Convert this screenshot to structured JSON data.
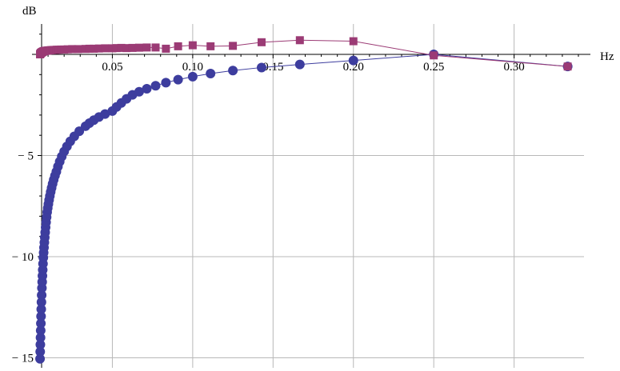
{
  "chart_data": {
    "type": "line",
    "xlabel": "Hz",
    "ylabel": "dB",
    "xlim": [
      0.0,
      0.345
    ],
    "ylim": [
      -15.2,
      1.2
    ],
    "x_ticks": [
      {
        "value": 0.05,
        "label": "0.05"
      },
      {
        "value": 0.1,
        "label": "0.10"
      },
      {
        "value": 0.15,
        "label": "0.15"
      },
      {
        "value": 0.2,
        "label": "0.20"
      },
      {
        "value": 0.25,
        "label": "0.25"
      },
      {
        "value": 0.3,
        "label": "0.30"
      }
    ],
    "y_ticks": [
      {
        "value": -5,
        "label": "− 5"
      },
      {
        "value": -10,
        "label": "− 10"
      },
      {
        "value": -15,
        "label": "− 15"
      }
    ],
    "grid": true,
    "series": [
      {
        "color": "#3d3d9e",
        "marker": "circle",
        "x": [
          0.005,
          0.0051,
          0.0052,
          0.0053,
          0.00541,
          0.00552,
          0.00563,
          0.00575,
          0.00588,
          0.00602,
          0.00617,
          0.00633,
          0.00649,
          0.00667,
          0.00685,
          0.00704,
          0.00725,
          0.00746,
          0.00769,
          0.00794,
          0.0082,
          0.00847,
          0.00877,
          0.00909,
          0.00943,
          0.0098,
          0.0102,
          0.01064,
          0.01111,
          0.01163,
          0.0122,
          0.01282,
          0.01351,
          0.01429,
          0.01515,
          0.01613,
          0.01724,
          0.01852,
          0.02,
          0.02174,
          0.02381,
          0.02632,
          0.02941,
          0.03333,
          0.03571,
          0.03846,
          0.04167,
          0.04545,
          0.05,
          0.05263,
          0.05556,
          0.05882,
          0.0625,
          0.06667,
          0.07143,
          0.07692,
          0.08333,
          0.09091,
          0.1,
          0.11111,
          0.125,
          0.14286,
          0.16667,
          0.2,
          0.25,
          0.33333
        ],
        "y": [
          -15.05,
          -14.7,
          -14.35,
          -14.0,
          -13.65,
          -13.3,
          -12.95,
          -12.6,
          -12.25,
          -11.9,
          -11.55,
          -11.25,
          -10.95,
          -10.65,
          -10.35,
          -10.05,
          -9.8,
          -9.55,
          -9.3,
          -9.05,
          -8.8,
          -8.55,
          -8.3,
          -8.05,
          -7.8,
          -7.6,
          -7.4,
          -7.2,
          -7.0,
          -6.8,
          -6.6,
          -6.4,
          -6.2,
          -6.0,
          -5.8,
          -5.55,
          -5.3,
          -5.05,
          -4.8,
          -4.55,
          -4.3,
          -4.05,
          -3.8,
          -3.55,
          -3.4,
          -3.25,
          -3.1,
          -2.95,
          -2.8,
          -2.6,
          -2.4,
          -2.2,
          -2.0,
          -1.85,
          -1.7,
          -1.55,
          -1.4,
          -1.25,
          -1.1,
          -0.95,
          -0.8,
          -0.65,
          -0.5,
          -0.3,
          0.0,
          -0.6
        ]
      },
      {
        "color": "#9b3b75",
        "marker": "square",
        "x": [
          0.005,
          0.00513,
          0.00526,
          0.00541,
          0.00556,
          0.00571,
          0.00588,
          0.00606,
          0.00625,
          0.00645,
          0.00667,
          0.0069,
          0.00714,
          0.00741,
          0.00769,
          0.008,
          0.00833,
          0.0087,
          0.00909,
          0.00952,
          0.01,
          0.01053,
          0.01111,
          0.01176,
          0.0125,
          0.01333,
          0.01429,
          0.01538,
          0.01667,
          0.01818,
          0.02,
          0.02222,
          0.025,
          0.02857,
          0.03333,
          0.03571,
          0.03846,
          0.04167,
          0.04545,
          0.05,
          0.05263,
          0.05556,
          0.05882,
          0.0625,
          0.06667,
          0.07143,
          0.07692,
          0.08333,
          0.09091,
          0.1,
          0.11111,
          0.125,
          0.14286,
          0.16667,
          0.2,
          0.25,
          0.33333
        ],
        "y": [
          0.0,
          0.02,
          0.04,
          0.06,
          0.07,
          0.08,
          0.09,
          0.1,
          0.11,
          0.12,
          0.13,
          0.14,
          0.15,
          0.16,
          0.16,
          0.17,
          0.17,
          0.18,
          0.18,
          0.19,
          0.19,
          0.2,
          0.2,
          0.21,
          0.21,
          0.22,
          0.22,
          0.23,
          0.23,
          0.24,
          0.24,
          0.25,
          0.26,
          0.26,
          0.27,
          0.28,
          0.28,
          0.29,
          0.3,
          0.3,
          0.31,
          0.32,
          0.31,
          0.32,
          0.33,
          0.34,
          0.34,
          0.28,
          0.4,
          0.45,
          0.4,
          0.42,
          0.6,
          0.7,
          0.65,
          -0.05,
          -0.6
        ]
      }
    ]
  }
}
